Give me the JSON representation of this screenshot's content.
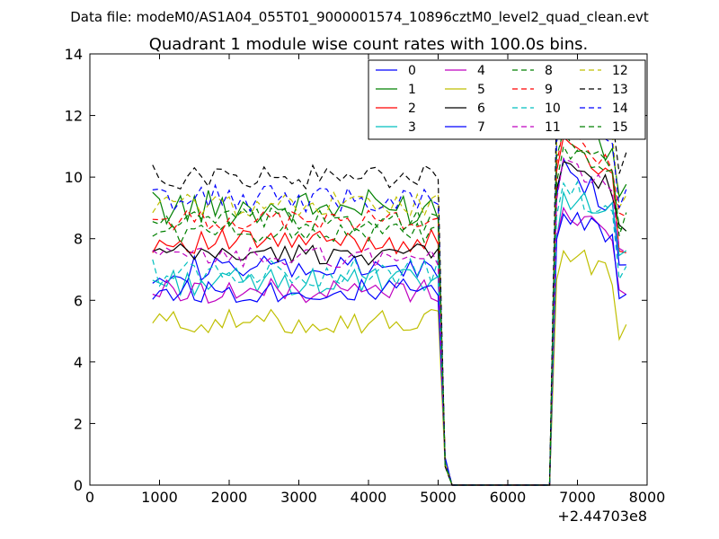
{
  "chart_data": {
    "type": "line",
    "suptitle": "Data file: modeM0/AS1A04_055T01_9000001574_10896cztM0_level2_quad_clean.evt",
    "title": "Quadrant 1 module wise count rates with 100.0s bins.",
    "xlabel": "",
    "ylabel": "",
    "x_offset_label": "+2.44703e8",
    "xlim": [
      0,
      8000
    ],
    "ylim": [
      0,
      14
    ],
    "xticks": [
      0,
      1000,
      2000,
      3000,
      4000,
      5000,
      6000,
      7000,
      8000
    ],
    "yticks": [
      0,
      2,
      4,
      6,
      8,
      10,
      12,
      14
    ],
    "grid": false,
    "legend_position": "top-right",
    "x_start": 900,
    "x_step": 100,
    "gap": {
      "from": 5200,
      "to": 6600
    },
    "series": [
      {
        "name": "0",
        "color": "#0000ff",
        "dash": "solid",
        "base1": 7.0,
        "amp1": 0.45,
        "base2": 8.7,
        "peak": 10.6
      },
      {
        "name": "1",
        "color": "#008000",
        "dash": "solid",
        "base1": 9.0,
        "amp1": 0.6,
        "base2": 10.7,
        "peak": 12.1
      },
      {
        "name": "2",
        "color": "#ff0000",
        "dash": "solid",
        "base1": 7.9,
        "amp1": 0.4,
        "base2": 9.6,
        "peak": 11.3
      },
      {
        "name": "3",
        "color": "#00bfbf",
        "dash": "solid",
        "base1": 6.6,
        "amp1": 0.45,
        "base2": 8.7,
        "peak": 9.5
      },
      {
        "name": "4",
        "color": "#bf00bf",
        "dash": "solid",
        "base1": 6.3,
        "amp1": 0.4,
        "base2": 8.1,
        "peak": 9.0
      },
      {
        "name": "5",
        "color": "#bfbf00",
        "dash": "solid",
        "base1": 5.3,
        "amp1": 0.4,
        "base2": 6.7,
        "peak": 7.6
      },
      {
        "name": "6",
        "color": "#000000",
        "dash": "solid",
        "base1": 7.5,
        "amp1": 0.35,
        "base2": 9.5,
        "peak": 10.5
      },
      {
        "name": "7",
        "color": "#0000ff",
        "dash": "solid",
        "base1": 6.3,
        "amp1": 0.4,
        "base2": 8.1,
        "peak": 8.8
      },
      {
        "name": "8",
        "color": "#008000",
        "dash": "dashed",
        "base1": 8.2,
        "amp1": 0.35,
        "base2": 9.8,
        "peak": 11.0
      },
      {
        "name": "9",
        "color": "#ff0000",
        "dash": "dashed",
        "base1": 8.6,
        "amp1": 0.35,
        "base2": 10.0,
        "peak": 11.6
      },
      {
        "name": "10",
        "color": "#00bfbf",
        "dash": "dashed",
        "base1": 6.9,
        "amp1": 0.45,
        "base2": 8.5,
        "peak": 9.8
      },
      {
        "name": "11",
        "color": "#bf00bf",
        "dash": "dashed",
        "base1": 7.4,
        "amp1": 0.35,
        "base2": 9.2,
        "peak": 10.6
      },
      {
        "name": "12",
        "color": "#bfbf00",
        "dash": "dashed",
        "base1": 9.1,
        "amp1": 0.4,
        "base2": 11.0,
        "peak": 12.3
      },
      {
        "name": "13",
        "color": "#000000",
        "dash": "dashed",
        "base1": 10.0,
        "amp1": 0.4,
        "base2": 11.7,
        "peak": 13.2
      },
      {
        "name": "14",
        "color": "#0000ff",
        "dash": "dashed",
        "base1": 9.3,
        "amp1": 0.45,
        "base2": 10.7,
        "peak": 12.2
      },
      {
        "name": "15",
        "color": "#008000",
        "dash": "dashed",
        "base1": 8.6,
        "amp1": 0.4,
        "base2": 10.0,
        "peak": 11.5
      }
    ]
  }
}
